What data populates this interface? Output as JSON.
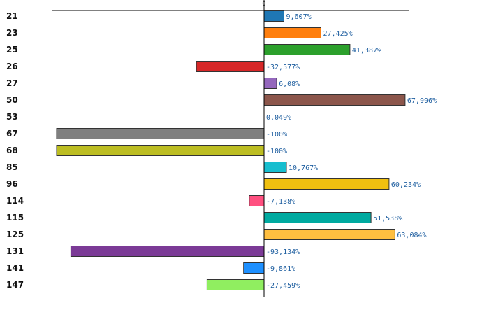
{
  "chart_data": {
    "type": "bar",
    "orientation": "horizontal",
    "title": "",
    "xlabel": "",
    "ylabel": "",
    "zero_tick_label": "0",
    "xlim": [
      -100,
      70
    ],
    "grid": false,
    "legend": "none",
    "categories": [
      "21",
      "23",
      "25",
      "26",
      "27",
      "50",
      "53",
      "67",
      "68",
      "85",
      "96",
      "114",
      "115",
      "125",
      "131",
      "141",
      "147"
    ],
    "values": [
      9.607,
      27.425,
      41.387,
      -32.577,
      6.08,
      67.996,
      0.049,
      -100,
      -100,
      10.767,
      60.234,
      -7.138,
      51.538,
      63.084,
      -93.134,
      -9.861,
      -27.459
    ],
    "value_labels": [
      "9,607%",
      "27,425%",
      "41,387%",
      "-32,577%",
      "6,08%",
      "67,996%",
      "0,049%",
      "-100%",
      "-100%",
      "10,767%",
      "60,234%",
      "-7,138%",
      "51,538%",
      "63,084%",
      "-93,134%",
      "-9,861%",
      "-27,459%"
    ],
    "colors": [
      "#1f77b4",
      "#ff7f0e",
      "#2ca02c",
      "#d62728",
      "#9467bd",
      "#8c564b",
      "#e377c2",
      "#7f7f7f",
      "#bcbd22",
      "#17becf",
      "#f0c010",
      "#ff5080",
      "#00aaa0",
      "#ffbf40",
      "#7b3a96",
      "#1e90ff",
      "#90ee60"
    ],
    "category_label_colors": [
      "#111111",
      "#111111",
      "#111111",
      "#cc0000",
      "#111111",
      "#111111",
      "#111111",
      "#111111",
      "#111111",
      "#111111",
      "#111111",
      "#111111",
      "#111111",
      "#111111",
      "#111111",
      "#111111",
      "#111111"
    ]
  }
}
